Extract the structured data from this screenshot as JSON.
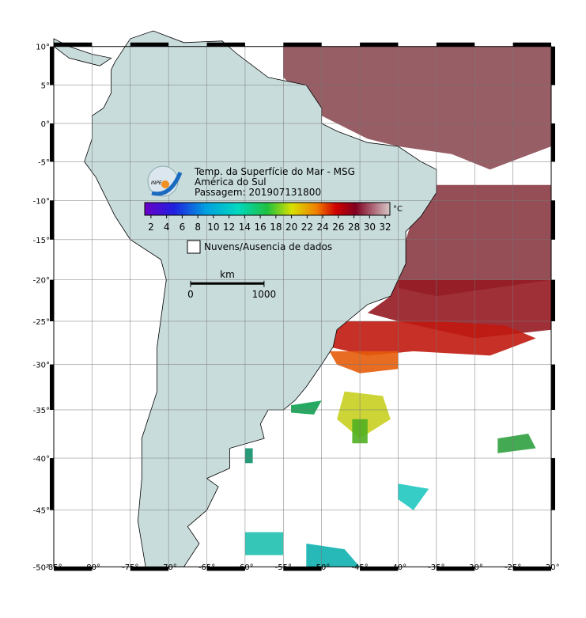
{
  "map": {
    "xlim": [
      -85,
      -20
    ],
    "ylim": [
      -50,
      10
    ],
    "xticks": [
      {
        "value": -85,
        "label": "-85°"
      },
      {
        "value": -80,
        "label": "-80°"
      },
      {
        "value": -75,
        "label": "-75°"
      },
      {
        "value": -70,
        "label": "-70°"
      },
      {
        "value": -65,
        "label": "-65°"
      },
      {
        "value": -60,
        "label": "-60°"
      },
      {
        "value": -55,
        "label": "-55°"
      },
      {
        "value": -50,
        "label": "-50°"
      },
      {
        "value": -45,
        "label": "-45°"
      },
      {
        "value": -40,
        "label": "-40°"
      },
      {
        "value": -35,
        "label": "-35°"
      },
      {
        "value": -30,
        "label": "-30°"
      },
      {
        "value": -25,
        "label": "-25°"
      },
      {
        "value": -20,
        "label": "-20°"
      }
    ],
    "yticks": [
      {
        "value": 10,
        "label": "10°"
      },
      {
        "value": 5,
        "label": "5°"
      },
      {
        "value": 0,
        "label": "0°"
      },
      {
        "value": -5,
        "label": "-5°"
      },
      {
        "value": -10,
        "label": "-10°"
      },
      {
        "value": -15,
        "label": "-15°"
      },
      {
        "value": -20,
        "label": "-20°"
      },
      {
        "value": -25,
        "label": "-25°"
      },
      {
        "value": -30,
        "label": "-30°"
      },
      {
        "value": -35,
        "label": "-35°"
      },
      {
        "value": -40,
        "label": "-40°"
      },
      {
        "value": -45,
        "label": "-45°"
      },
      {
        "value": -50,
        "label": "-50°"
      }
    ]
  },
  "header": {
    "logo": "INPE",
    "lines": [
      "Temp. da Superfície do Mar - MSG",
      "América do Sul",
      "Passagem: 201907131800"
    ]
  },
  "colorbar": {
    "range": [
      1.2,
      32.6
    ],
    "ticks": [
      2,
      4,
      6,
      8,
      10,
      12,
      14,
      16,
      18,
      20,
      22,
      24,
      26,
      28,
      30,
      32
    ],
    "unit": "°C"
  },
  "legend": {
    "label": "Nuvens/Ausencia de dados"
  },
  "scale_bar": {
    "unit": "km",
    "ticks": [
      0,
      1000
    ]
  }
}
